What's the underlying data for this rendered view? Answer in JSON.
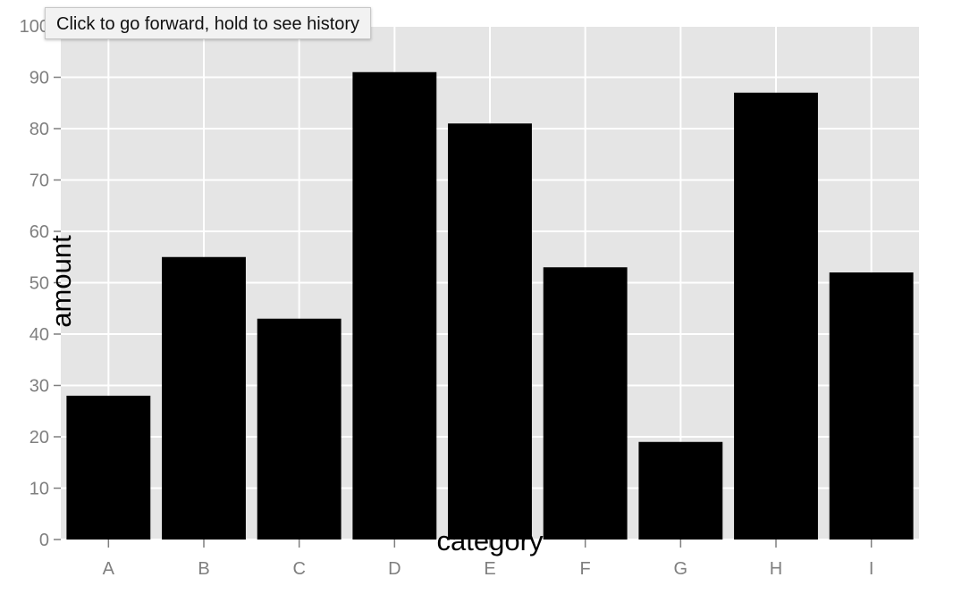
{
  "colors": {
    "panel_background": "#e5e5e5",
    "gridline": "#ffffff",
    "bar_fill": "#000000",
    "tick_label": "#7f7f7f",
    "axis_title": "#000000"
  },
  "tooltip": {
    "text": "Click to go forward, hold to see history"
  },
  "chart_data": {
    "type": "bar",
    "categories": [
      "A",
      "B",
      "C",
      "D",
      "E",
      "F",
      "G",
      "H",
      "I"
    ],
    "values": [
      28,
      55,
      43,
      91,
      81,
      53,
      19,
      87,
      52
    ],
    "xlabel": "category",
    "ylabel": "amount",
    "ylim": [
      0,
      100
    ],
    "yticks": [
      0,
      10,
      20,
      30,
      40,
      50,
      60,
      70,
      80,
      90,
      100
    ],
    "grid": true,
    "legend": "none"
  }
}
